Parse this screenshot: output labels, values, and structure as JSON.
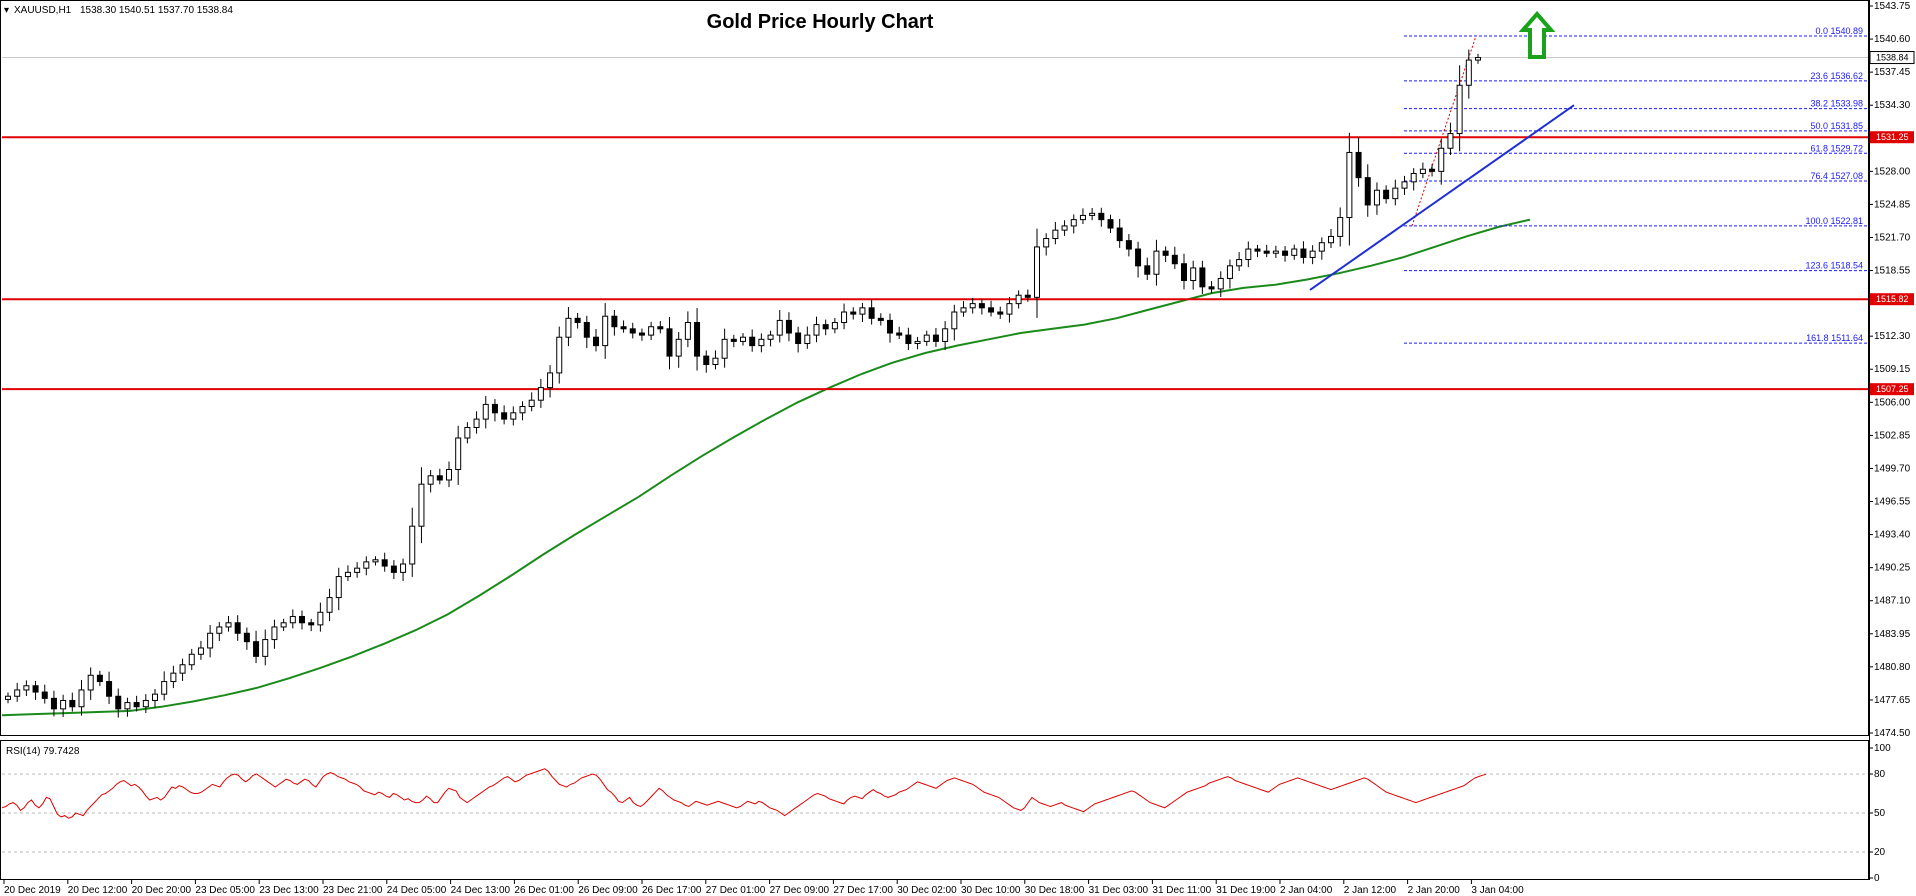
{
  "chart_data": [
    {
      "type": "candlestick",
      "title": "Gold Price Hourly Chart",
      "symbol_label": "XAUUSD,H1",
      "ohlc_label": "1538.30 1540.51 1537.70 1538.84",
      "last_price_label": "1538.84",
      "ylim": [
        1474.5,
        1543.75
      ],
      "y_ticks": [
        "1543.75",
        "1540.60",
        "1537.45",
        "1534.30",
        "1531.25",
        "1528.00",
        "1524.85",
        "1521.70",
        "1518.55",
        "1515.82",
        "1512.30",
        "1509.15",
        "1506.00",
        "1502.85",
        "1499.70",
        "1496.55",
        "1493.40",
        "1490.25",
        "1487.10",
        "1483.95",
        "1480.80",
        "1477.65",
        "1474.50"
      ],
      "x_ticks": [
        "20 Dec 2019",
        "20 Dec 12:00",
        "20 Dec 20:00",
        "23 Dec 05:00",
        "23 Dec 13:00",
        "23 Dec 21:00",
        "24 Dec 05:00",
        "24 Dec 13:00",
        "26 Dec 01:00",
        "26 Dec 09:00",
        "26 Dec 17:00",
        "27 Dec 01:00",
        "27 Dec 09:00",
        "27 Dec 17:00",
        "30 Dec 02:00",
        "30 Dec 10:00",
        "30 Dec 18:00",
        "31 Dec 03:00",
        "31 Dec 11:00",
        "31 Dec 19:00",
        "2 Jan 04:00",
        "2 Jan 12:00",
        "2 Jan 20:00",
        "3 Jan 04:00"
      ],
      "closes": [
        1478.0,
        1478.6,
        1479.0,
        1478.4,
        1477.8,
        1476.8,
        1477.6,
        1477.0,
        1478.6,
        1480.0,
        1479.4,
        1478.0,
        1476.8,
        1477.4,
        1477.0,
        1477.6,
        1478.2,
        1479.4,
        1480.2,
        1481.0,
        1482.0,
        1482.6,
        1484.0,
        1484.6,
        1485.0,
        1484.0,
        1483.2,
        1481.8,
        1483.4,
        1484.6,
        1485.0,
        1485.6,
        1485.0,
        1484.8,
        1486.0,
        1487.4,
        1489.4,
        1489.8,
        1490.2,
        1490.8,
        1491.0,
        1490.4,
        1489.8,
        1490.6,
        1494.2,
        1498.2,
        1499.0,
        1498.6,
        1499.6,
        1502.6,
        1503.6,
        1504.4,
        1505.8,
        1505.0,
        1504.4,
        1505.0,
        1505.6,
        1506.2,
        1507.4,
        1508.8,
        1512.2,
        1514.0,
        1513.6,
        1512.2,
        1511.4,
        1514.2,
        1513.2,
        1513.0,
        1512.6,
        1512.4,
        1513.2,
        1513.0,
        1510.4,
        1512.0,
        1513.6,
        1510.4,
        1509.6,
        1510.2,
        1512.0,
        1511.8,
        1512.2,
        1511.4,
        1512.0,
        1512.4,
        1513.8,
        1512.6,
        1511.6,
        1512.4,
        1513.4,
        1513.0,
        1513.6,
        1514.6,
        1514.4,
        1515.0,
        1514.0,
        1513.8,
        1512.6,
        1512.4,
        1511.6,
        1511.8,
        1512.4,
        1511.8,
        1513.0,
        1514.6,
        1515.0,
        1515.4,
        1515.0,
        1514.6,
        1514.4,
        1515.4,
        1516.2,
        1516.0,
        1520.8,
        1521.6,
        1522.4,
        1522.8,
        1523.4,
        1523.8,
        1524.0,
        1523.4,
        1522.6,
        1521.4,
        1520.6,
        1519.0,
        1518.2,
        1520.4,
        1520.0,
        1519.2,
        1517.6,
        1518.8,
        1517.0,
        1516.8,
        1517.8,
        1519.0,
        1519.6,
        1520.6,
        1520.4,
        1520.2,
        1520.4,
        1520.0,
        1520.6,
        1519.8,
        1520.4,
        1521.2,
        1521.8,
        1523.6,
        1529.8,
        1527.4,
        1524.8,
        1526.2,
        1525.4,
        1526.4,
        1527.0,
        1527.8,
        1528.2,
        1528.0,
        1530.2,
        1531.6,
        1536.2,
        1538.6,
        1538.84
      ],
      "ma_series": [
        1476.2,
        1476.3,
        1476.4,
        1476.5,
        1476.6,
        1477.0,
        1477.5,
        1478.1,
        1478.8,
        1479.7,
        1480.7,
        1481.8,
        1483.0,
        1484.3,
        1485.8,
        1487.6,
        1489.5,
        1491.5,
        1493.4,
        1495.2,
        1497.0,
        1499.0,
        1500.9,
        1502.7,
        1504.4,
        1506.0,
        1507.4,
        1508.7,
        1509.8,
        1510.7,
        1511.4,
        1512.0,
        1512.6,
        1513.0,
        1513.4,
        1514.0,
        1514.8,
        1515.6,
        1516.4,
        1516.9,
        1517.2,
        1517.7,
        1518.3,
        1519.0,
        1519.8,
        1520.8,
        1521.8,
        1522.7,
        1523.4
      ],
      "resistance_lines": [
        1531.25,
        1515.82,
        1507.25
      ],
      "fibonacci": [
        {
          "level": "0.0",
          "value": 1540.89
        },
        {
          "level": "23.6",
          "value": 1536.62
        },
        {
          "level": "38.2",
          "value": 1533.98
        },
        {
          "level": "50.0",
          "value": 1531.85
        },
        {
          "level": "61.8",
          "value": 1529.72
        },
        {
          "level": "76.4",
          "value": 1527.08
        },
        {
          "level": "100.0",
          "value": 1522.81
        },
        {
          "level": "123.6",
          "value": 1518.54
        },
        {
          "level": "161.8",
          "value": 1511.64
        }
      ],
      "trend_line": {
        "from": 1516.7,
        "to": 1534.3
      },
      "colors": {
        "bull": "#ffffff",
        "bear": "#000000",
        "ma": "#1a8a1a",
        "support": "#e00000",
        "fib": "#1a1aff",
        "trend": "#1f2fd6",
        "arrow": "#1aa31a",
        "rsi": "#e00000"
      }
    },
    {
      "type": "line",
      "title": "RSI(14) 79.7428",
      "ylim": [
        0,
        100
      ],
      "y_ticks": [
        "100",
        "80",
        "50",
        "20",
        "0"
      ],
      "values": [
        54,
        55,
        57,
        58,
        56,
        52,
        54,
        58,
        60,
        56,
        54,
        57,
        62,
        61,
        55,
        49,
        47,
        48,
        46,
        47,
        50,
        49,
        48,
        52,
        55,
        58,
        61,
        64,
        65,
        67,
        69,
        72,
        74,
        75,
        73,
        71,
        72,
        70,
        67,
        63,
        60,
        61,
        62,
        60,
        62,
        66,
        70,
        69,
        71,
        70,
        68,
        66,
        65,
        65,
        66,
        68,
        70,
        72,
        71,
        70,
        74,
        77,
        79,
        80,
        79,
        76,
        74,
        76,
        79,
        80,
        78,
        76,
        74,
        72,
        70,
        72,
        74,
        76,
        75,
        73,
        72,
        74,
        76,
        75,
        72,
        70,
        74,
        78,
        80,
        81,
        80,
        78,
        77,
        76,
        74,
        73,
        72,
        70,
        67,
        66,
        65,
        64,
        66,
        65,
        63,
        62,
        65,
        64,
        62,
        60,
        61,
        59,
        58,
        58,
        60,
        63,
        61,
        58,
        58,
        62,
        66,
        69,
        68,
        67,
        62,
        60,
        58,
        60,
        62,
        64,
        66,
        68,
        70,
        71,
        73,
        75,
        77,
        78,
        76,
        74,
        75,
        77,
        79,
        80,
        81,
        82,
        83,
        84,
        82,
        78,
        75,
        72,
        71,
        70,
        72,
        73,
        75,
        77,
        78,
        79,
        80,
        79,
        76,
        72,
        68,
        66,
        63,
        59,
        58,
        60,
        62,
        58,
        56,
        55,
        57,
        60,
        63,
        66,
        69,
        67,
        64,
        62,
        60,
        59,
        58,
        56,
        55,
        57,
        59,
        58,
        57,
        56,
        57,
        58,
        59,
        58,
        57,
        56,
        55,
        54,
        55,
        57,
        59,
        58,
        57,
        59,
        58,
        56,
        54,
        53,
        52,
        50,
        48,
        50,
        52,
        54,
        56,
        58,
        60,
        62,
        64,
        65,
        64,
        63,
        61,
        60,
        59,
        58,
        57,
        60,
        62,
        63,
        62,
        61,
        64,
        66,
        68,
        66,
        65,
        63,
        62,
        63,
        64,
        66,
        67,
        68,
        70,
        72,
        74,
        73,
        72,
        71,
        70,
        69,
        71,
        73,
        75,
        76,
        77,
        76,
        75,
        74,
        73,
        72,
        70,
        68,
        66,
        65,
        64,
        63,
        62,
        60,
        58,
        56,
        54,
        53,
        52,
        54,
        58,
        62,
        60,
        58,
        57,
        56,
        55,
        56,
        57,
        58,
        56,
        55,
        54,
        53,
        52,
        51,
        53,
        55,
        57,
        58,
        59,
        60,
        61,
        62,
        63,
        64,
        65,
        66,
        67,
        66,
        64,
        62,
        60,
        58,
        57,
        56,
        55,
        54,
        56,
        58,
        60,
        62,
        64,
        66,
        67,
        68,
        69,
        70,
        71,
        73,
        74,
        75,
        76,
        77,
        78,
        77,
        75,
        74,
        73,
        72,
        71,
        70,
        69,
        68,
        67,
        66,
        68,
        70,
        72,
        73,
        74,
        75,
        76,
        77,
        76,
        75,
        74,
        73,
        72,
        71,
        70,
        69,
        68,
        69,
        70,
        71,
        72,
        73,
        74,
        75,
        76,
        77,
        76,
        74,
        72,
        70,
        68,
        66,
        65,
        64,
        63,
        62,
        61,
        60,
        59,
        58,
        59,
        60,
        61,
        62,
        63,
        64,
        65,
        66,
        67,
        68,
        69,
        70,
        71,
        73,
        75,
        77,
        78,
        79,
        79.7428
      ]
    }
  ]
}
